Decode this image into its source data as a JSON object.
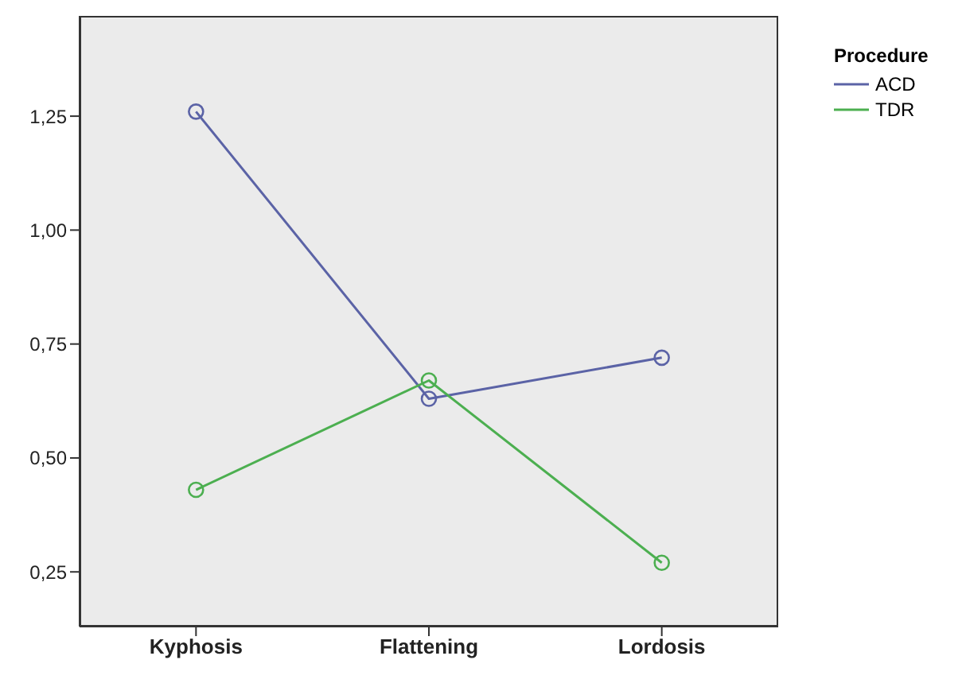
{
  "chart_data": {
    "type": "line",
    "categories": [
      "Kyphosis",
      "Flattening",
      "Lordosis"
    ],
    "legend_title": "Procedure",
    "series": [
      {
        "name": "ACD",
        "color": "#5b63a6",
        "values": [
          1.26,
          0.63,
          0.72
        ]
      },
      {
        "name": "TDR",
        "color": "#4caf50",
        "values": [
          0.43,
          0.67,
          0.27
        ]
      }
    ],
    "ylim": [
      0.13,
      1.47
    ],
    "yticks": [
      {
        "value": 0.25,
        "label": "0,25"
      },
      {
        "value": 0.5,
        "label": "0,50"
      },
      {
        "value": 0.75,
        "label": "0,75"
      },
      {
        "value": 1,
        "label": "1,00"
      },
      {
        "value": 1.25,
        "label": "1,25"
      }
    ],
    "grid": false,
    "legend": "top right",
    "marker": "circle",
    "line_style": "solid"
  }
}
